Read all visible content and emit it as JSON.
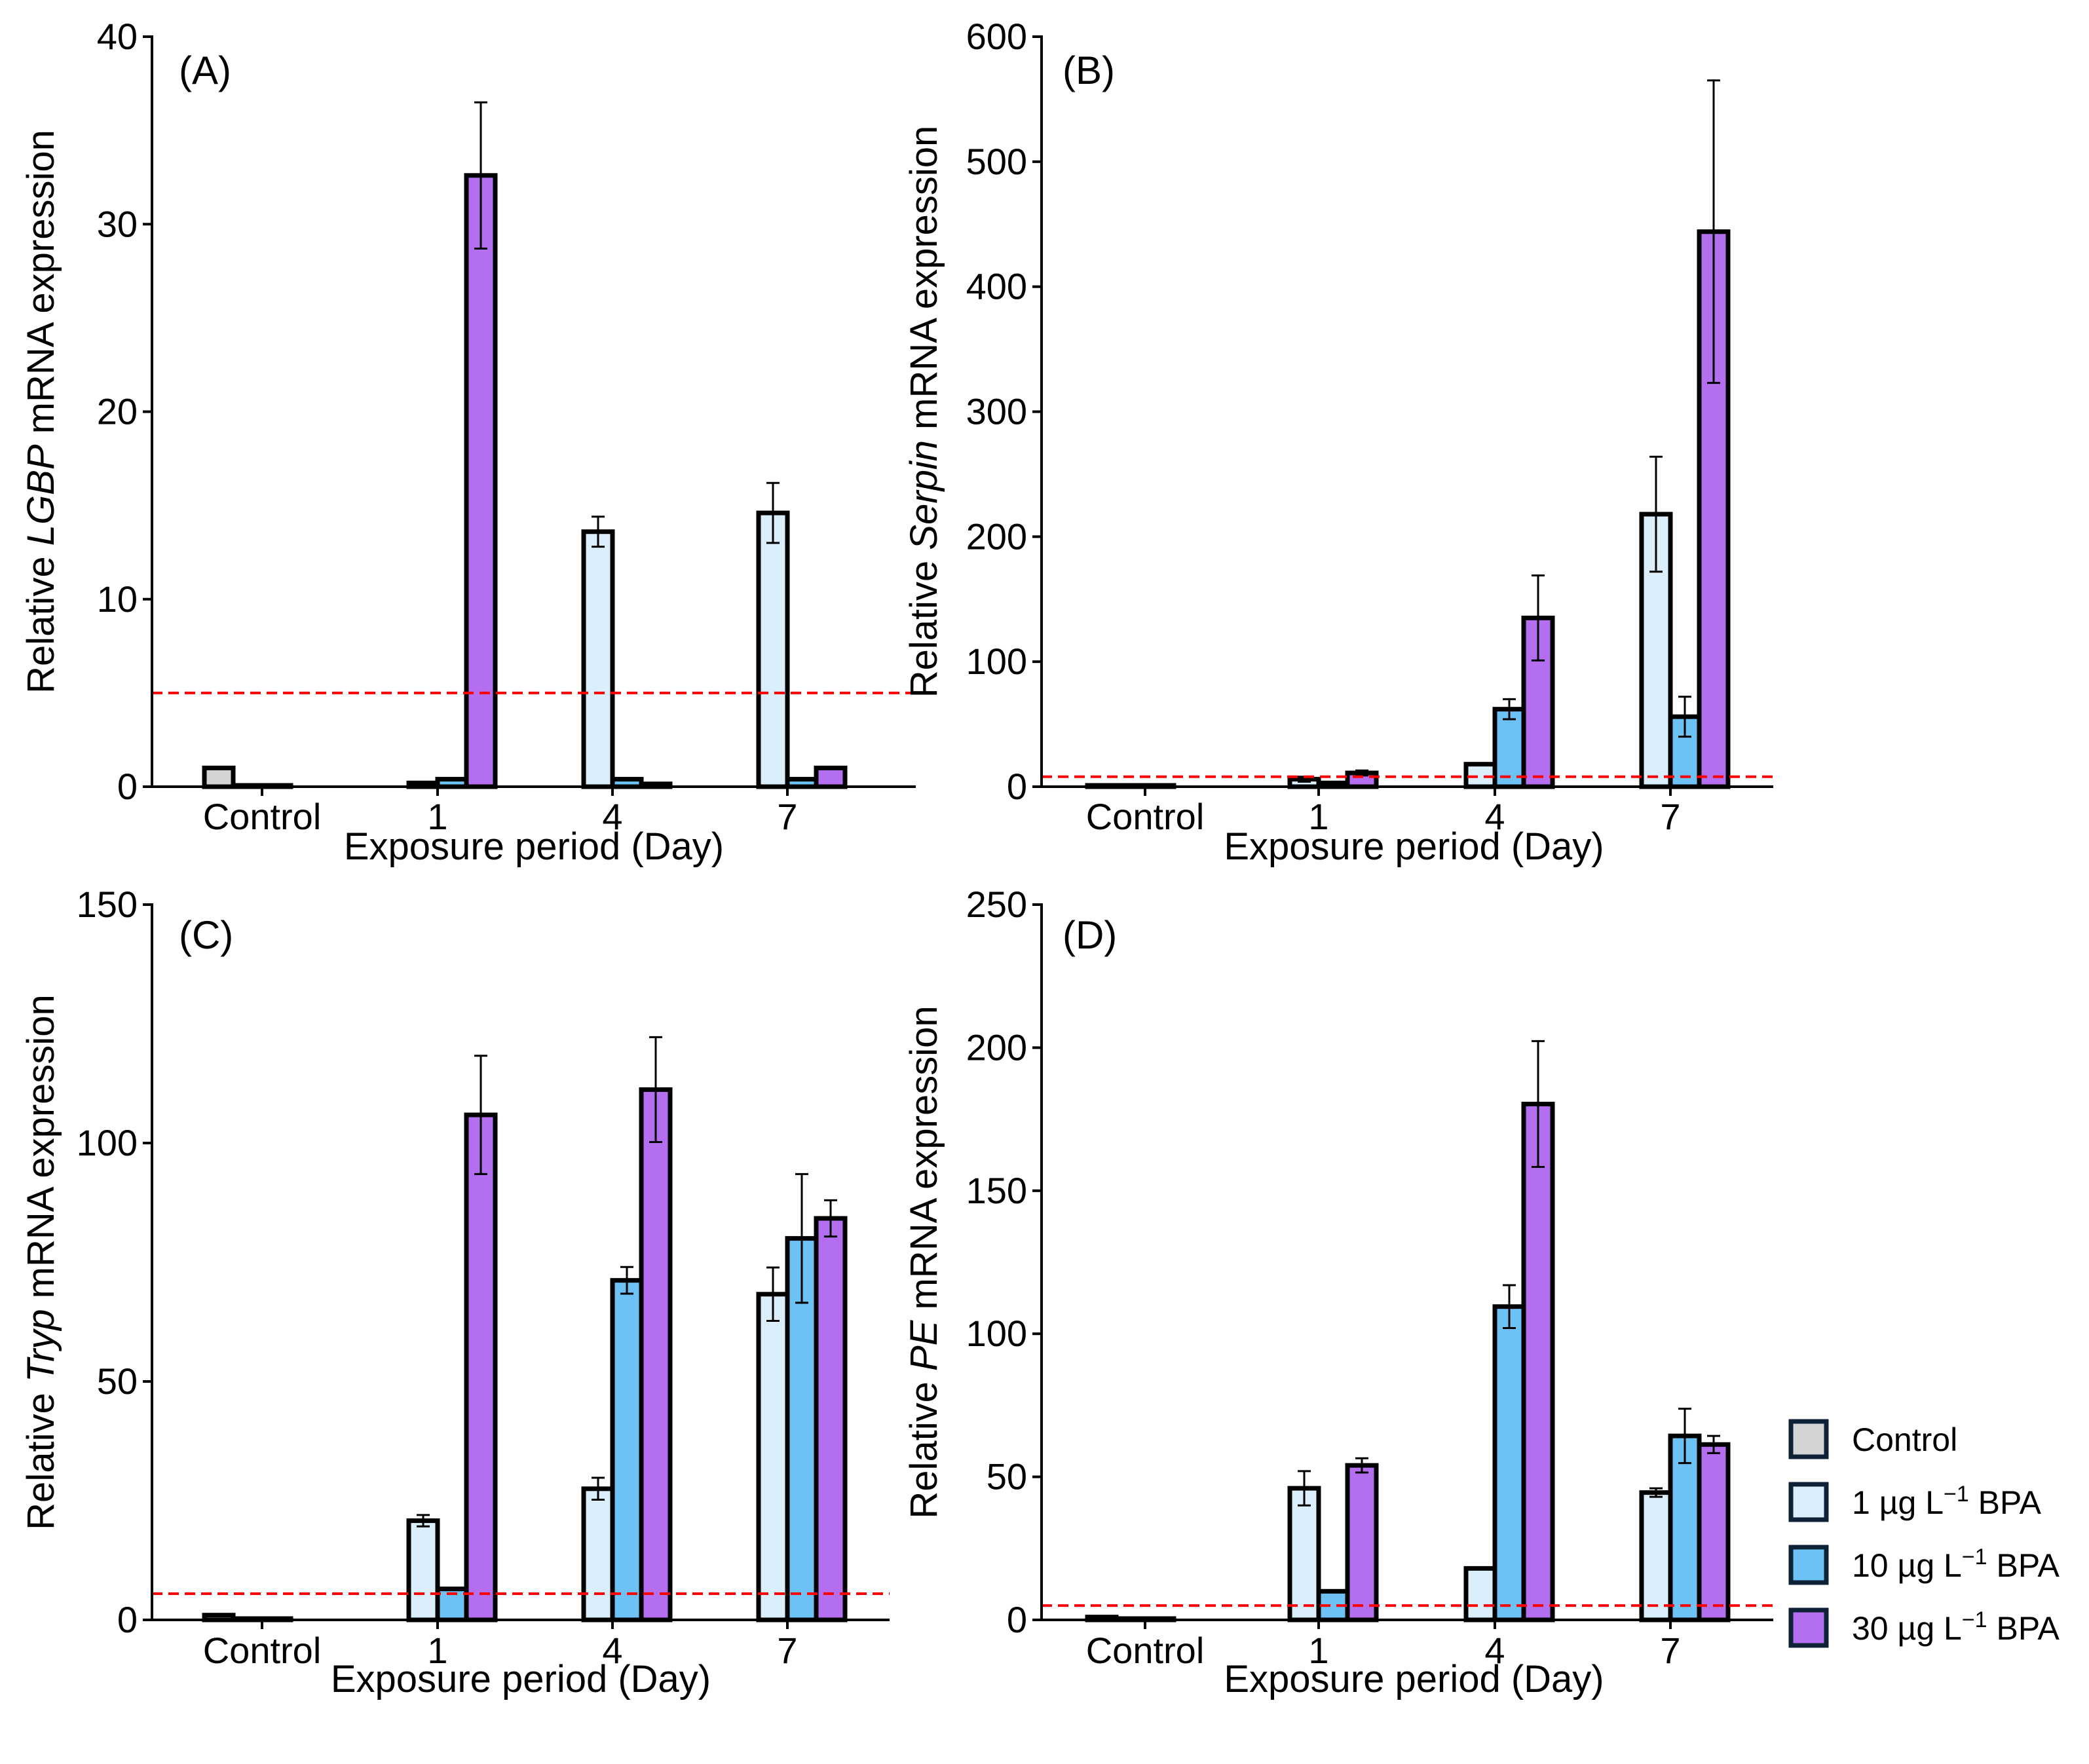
{
  "colors": {
    "control": "#d3d3d3",
    "bpa1": "#dbeefb",
    "bpa10": "#6ec1f5",
    "bpa30": "#b36ff0",
    "threshold": "#ff0000",
    "axis": "#000000"
  },
  "legend": {
    "items": [
      {
        "key": "control",
        "label_html": "Control"
      },
      {
        "key": "bpa1",
        "label_html": "1 µg L<tspan baseline-shift=\"super\" font-size=\"34\">−1</tspan> BPA"
      },
      {
        "key": "bpa10",
        "label_html": "10 µg L<tspan baseline-shift=\"super\" font-size=\"34\">−1</tspan> BPA"
      },
      {
        "key": "bpa30",
        "label_html": "30 µg L<tspan baseline-shift=\"super\" font-size=\"34\">−1</tspan> BPA"
      }
    ]
  },
  "chart_data": [
    {
      "type": "bar",
      "panel_label": "(A)",
      "gene": "LGBP",
      "ylabel_prefix": "Relative ",
      "ylabel_suffix": " mRNA expression",
      "xlabel": "Exposure period (Day)",
      "categories": [
        "Control",
        "1",
        "4",
        "7"
      ],
      "ylim": [
        0,
        40
      ],
      "yticks": [
        0,
        10,
        20,
        30,
        40
      ],
      "threshold": 5,
      "series": [
        {
          "name": "Control",
          "key": "control",
          "values": [
            1.0,
            null,
            null,
            null
          ],
          "errors": [
            0,
            null,
            null,
            null
          ]
        },
        {
          "name": "1 µg L−1 BPA",
          "key": "bpa1",
          "values": [
            0.05,
            0.2,
            13.6,
            14.6
          ],
          "errors": [
            0,
            0,
            0.8,
            1.6
          ]
        },
        {
          "name": "10 µg L−1 BPA",
          "key": "bpa10",
          "values": [
            0.02,
            0.4,
            0.4,
            0.4
          ],
          "errors": [
            0,
            0,
            0,
            0
          ]
        },
        {
          "name": "30 µg L−1 BPA",
          "key": "bpa30",
          "values": [
            null,
            32.6,
            0.15,
            1.0
          ],
          "errors": [
            null,
            3.9,
            0,
            0
          ]
        }
      ]
    },
    {
      "type": "bar",
      "panel_label": "(B)",
      "gene": "Serpin",
      "ylabel_prefix": "Relative ",
      "ylabel_suffix": " mRNA expression",
      "xlabel": "Exposure period (Day)",
      "categories": [
        "Control",
        "1",
        "4",
        "7"
      ],
      "ylim": [
        0,
        600
      ],
      "yticks": [
        0,
        100,
        200,
        300,
        400,
        500,
        600
      ],
      "threshold": 8,
      "series": [
        {
          "name": "Control",
          "key": "control",
          "values": [
            1,
            null,
            null,
            null
          ],
          "errors": [
            0,
            null,
            null,
            null
          ]
        },
        {
          "name": "1 µg L−1 BPA",
          "key": "bpa1",
          "values": [
            0.5,
            6,
            18,
            218
          ],
          "errors": [
            0,
            2,
            0,
            46
          ]
        },
        {
          "name": "10 µg L−1 BPA",
          "key": "bpa10",
          "values": [
            0.3,
            3,
            62,
            56
          ],
          "errors": [
            0,
            0,
            8,
            16
          ]
        },
        {
          "name": "30 µg L−1 BPA",
          "key": "bpa30",
          "values": [
            null,
            11,
            135,
            444
          ],
          "errors": [
            null,
            2,
            34,
            121
          ]
        }
      ]
    },
    {
      "type": "bar",
      "panel_label": "(C)",
      "gene": "Tryp",
      "ylabel_prefix": "Relative ",
      "ylabel_suffix": " mRNA expression",
      "xlabel": "Exposure period (Day)",
      "categories": [
        "Control",
        "1",
        "4",
        "7"
      ],
      "ylim": [
        0,
        150
      ],
      "yticks": [
        0,
        50,
        100,
        150
      ],
      "threshold": 5.5,
      "series": [
        {
          "name": "Control",
          "key": "control",
          "values": [
            1,
            null,
            null,
            null
          ],
          "errors": [
            0,
            null,
            null,
            null
          ]
        },
        {
          "name": "1 µg L−1 BPA",
          "key": "bpa1",
          "values": [
            0.2,
            20.8,
            27.5,
            68.3
          ],
          "errors": [
            0,
            1.2,
            2.3,
            5.6
          ]
        },
        {
          "name": "10 µg L−1 BPA",
          "key": "bpa10",
          "values": [
            0.1,
            6.5,
            71.2,
            80.0
          ],
          "errors": [
            0,
            0,
            2.8,
            13.5
          ]
        },
        {
          "name": "30 µg L−1 BPA",
          "key": "bpa30",
          "values": [
            null,
            105.9,
            111.2,
            84.2
          ],
          "errors": [
            null,
            12.4,
            11.0,
            3.8
          ]
        }
      ]
    },
    {
      "type": "bar",
      "panel_label": "(D)",
      "gene": "PE",
      "ylabel_prefix": "Relative ",
      "ylabel_suffix": " mRNA expression",
      "xlabel": "Exposure period (Day)",
      "categories": [
        "Control",
        "1",
        "4",
        "7"
      ],
      "ylim": [
        0,
        250
      ],
      "yticks": [
        0,
        50,
        100,
        150,
        200,
        250
      ],
      "threshold": 5,
      "series": [
        {
          "name": "Control",
          "key": "control",
          "values": [
            1,
            null,
            null,
            null
          ],
          "errors": [
            0,
            null,
            null,
            null
          ]
        },
        {
          "name": "1 µg L−1 BPA",
          "key": "bpa1",
          "values": [
            0.3,
            46,
            18,
            44.5
          ],
          "errors": [
            0,
            6,
            0,
            1.5
          ]
        },
        {
          "name": "10 µg L−1 BPA",
          "key": "bpa10",
          "values": [
            0.2,
            10,
            109.5,
            64.3
          ],
          "errors": [
            0,
            0,
            7.5,
            9.5
          ]
        },
        {
          "name": "30 µg L−1 BPA",
          "key": "bpa30",
          "values": [
            null,
            54,
            180.3,
            61.3
          ],
          "errors": [
            null,
            2.5,
            22.0,
            3.0
          ]
        }
      ]
    }
  ]
}
